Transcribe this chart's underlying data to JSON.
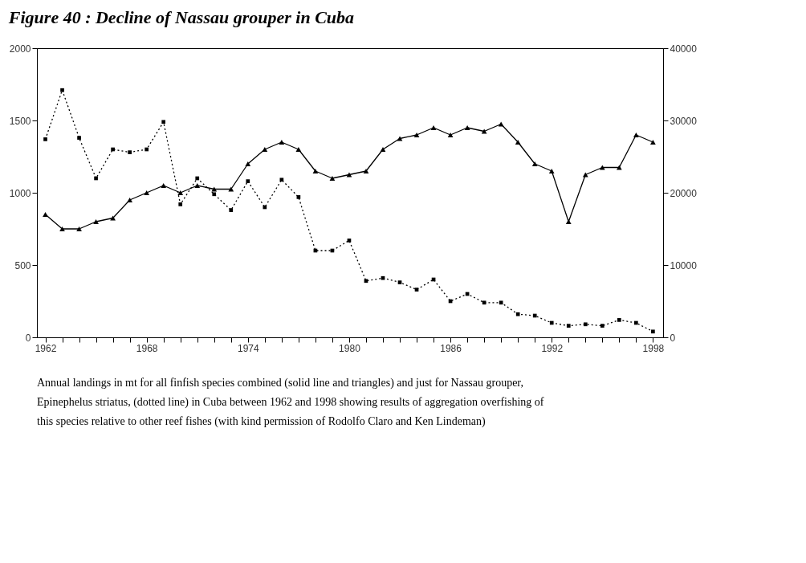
{
  "chart_data": {
    "type": "line",
    "title": "Figure 40 : Decline of Nassau grouper in Cuba",
    "annotations": [
      "Annual landings in mt for all finfish species combined (solid line and triangles) and just for Nassau grouper, Epinephelus striatus, (dotted line) in Cuba between 1962 and 1998 showing results of aggregation overfishing of this species relative to other reef fishes (with kind permission of Rodolfo Claro and Ken Lindeman)"
    ],
    "x": [
      1962,
      1963,
      1964,
      1965,
      1966,
      1967,
      1968,
      1969,
      1970,
      1971,
      1972,
      1973,
      1974,
      1975,
      1976,
      1977,
      1978,
      1979,
      1980,
      1981,
      1982,
      1983,
      1984,
      1985,
      1986,
      1987,
      1988,
      1989,
      1990,
      1991,
      1992,
      1993,
      1994,
      1995,
      1996,
      1997,
      1998
    ],
    "series": [
      {
        "color": "#000000",
        "marker": "square",
        "line_style": "dotted",
        "values": [
          1370,
          1710,
          1380,
          1100,
          1300,
          1280,
          1300,
          1490,
          920,
          1100,
          990,
          880,
          1080,
          900,
          1090,
          970,
          600,
          600,
          670,
          390,
          410,
          380,
          330,
          400,
          250,
          300,
          240,
          240,
          160,
          150,
          100,
          80,
          90,
          80,
          120,
          100,
          40
        ]
      },
      {
        "color": "#000000",
        "marker": "triangle",
        "line_style": "solid",
        "axis": "y2",
        "values": [
          17000,
          15000,
          15000,
          16000,
          16500,
          19000,
          20000,
          21000,
          20000,
          21000,
          20500,
          20500,
          24000,
          26000,
          27000,
          26000,
          23000,
          22000,
          22500,
          23000,
          26000,
          27500,
          28000,
          29000,
          28000,
          29000,
          28500,
          29500,
          27000,
          24000,
          23000,
          16000,
          22500,
          23500,
          23500,
          28000,
          27000
        ]
      }
    ],
    "xlim": [
      1961.5,
      1998.6
    ],
    "xticks": [
      1962,
      {
        "value": 1963,
        "label": null
      },
      {
        "value": 1964,
        "label": null
      },
      {
        "value": 1965,
        "label": null
      },
      {
        "value": 1966,
        "label": null
      },
      {
        "value": 1967,
        "label": null
      },
      1968,
      {
        "value": 1969,
        "label": null
      },
      {
        "value": 1970,
        "label": null
      },
      {
        "value": 1971,
        "label": null
      },
      {
        "value": 1972,
        "label": null
      },
      {
        "value": 1973,
        "label": null
      },
      1974,
      {
        "value": 1975,
        "label": null
      },
      {
        "value": 1976,
        "label": null
      },
      {
        "value": 1977,
        "label": null
      },
      {
        "value": 1978,
        "label": null
      },
      {
        "value": 1979,
        "label": null
      },
      1980,
      {
        "value": 1981,
        "label": null
      },
      {
        "value": 1982,
        "label": null
      },
      {
        "value": 1983,
        "label": null
      },
      {
        "value": 1984,
        "label": null
      },
      {
        "value": 1985,
        "label": null
      },
      1986,
      {
        "value": 1987,
        "label": null
      },
      {
        "value": 1988,
        "label": null
      },
      {
        "value": 1989,
        "label": null
      },
      {
        "value": 1990,
        "label": null
      },
      {
        "value": 1991,
        "label": null
      },
      1992,
      {
        "value": 1993,
        "label": null
      },
      {
        "value": 1994,
        "label": null
      },
      {
        "value": 1995,
        "label": null
      },
      {
        "value": 1996,
        "label": null
      },
      {
        "value": 1997,
        "label": null
      },
      1998
    ],
    "ylim": [
      0,
      2000
    ],
    "yticks": [
      0,
      500,
      1000,
      1500,
      2000
    ],
    "y2lim": [
      0,
      40000
    ],
    "y2ticks": [
      0,
      10000,
      20000,
      30000,
      40000
    ],
    "grid": false,
    "legend": false
  }
}
